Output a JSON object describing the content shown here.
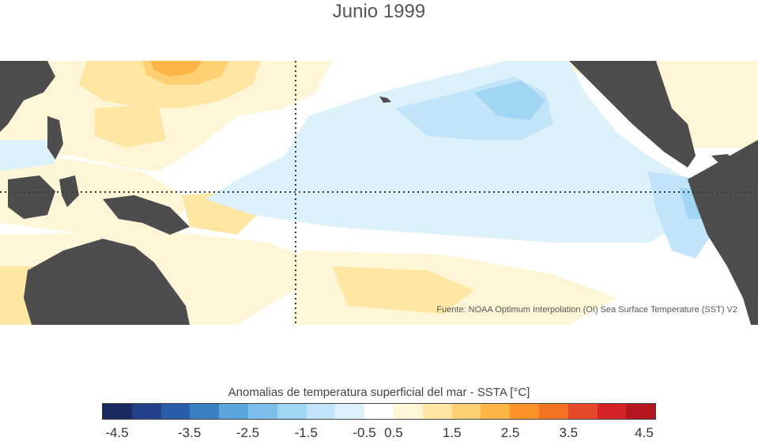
{
  "title": "Junio 1999",
  "source": "Fuente: NOAA Optimum Interpolation (OI) Sea Surface Temperature (SST) V2",
  "legend": {
    "title": "Anomalias de temperatura superficial del mar - SSTA  [°C]",
    "ticks": [
      "-4.5",
      "-3.5",
      "-2.5",
      "-1.5",
      "-0.5",
      "0.5",
      "1.5",
      "2.5",
      "3.5",
      "4.5"
    ],
    "colors": [
      "#1b2a5e",
      "#22418a",
      "#2a5ca8",
      "#3a7fc1",
      "#5aa5db",
      "#7dbfea",
      "#a1d5f4",
      "#c1e4f8",
      "#ddf1fb",
      "#ffffff",
      "#fff6d8",
      "#ffe6a3",
      "#ffd173",
      "#ffb545",
      "#fb9329",
      "#f47224",
      "#e4492a",
      "#d42226",
      "#b51720"
    ]
  },
  "colors": {
    "land": "#4d4d4d",
    "neutral": "#ffffff",
    "warm_light": "#fff6d8",
    "warm_medium": "#ffe6a3",
    "warm_strong": "#ffb545",
    "cool_light": "#ddf1fb",
    "cool_medium": "#c1e4f8",
    "cool_strong": "#a1d5f4"
  }
}
